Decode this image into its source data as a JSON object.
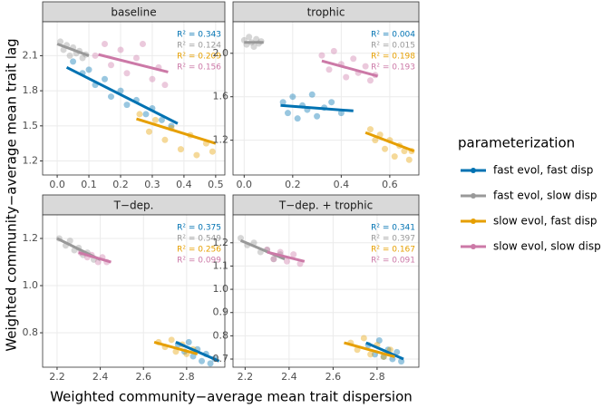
{
  "chart_data": [
    {
      "type": "scatter",
      "title": "baseline",
      "xlim": [
        -0.046,
        0.529
      ],
      "xticks": [
        {
          "value": 0,
          "label": "0.0"
        },
        0.1,
        0.2,
        0.3,
        0.4,
        0.5
      ],
      "ylim": [
        1.08,
        2.39
      ],
      "yticks": [
        1.2,
        1.5,
        1.8,
        2.1
      ],
      "grid": true,
      "series": [
        {
          "name": "fast evol, fast disp",
          "color": "#0072B2",
          "r2": "R² = 0.343",
          "x": [
            0.05,
            0.08,
            0.1,
            0.12,
            0.15,
            0.17,
            0.2,
            0.22,
            0.25,
            0.28,
            0.3,
            0.33,
            0.36
          ],
          "y": [
            2.05,
            1.95,
            1.98,
            1.85,
            1.9,
            1.75,
            1.8,
            1.68,
            1.72,
            1.6,
            1.65,
            1.55,
            1.5
          ],
          "fit_x": [
            0.03,
            0.38
          ],
          "fit_y": [
            2.0,
            1.52
          ]
        },
        {
          "name": "fast evol, slow disp",
          "color": "#999999",
          "r2": "R² = 0.124",
          "x": [
            0.01,
            0.02,
            0.03,
            0.04,
            0.05,
            0.06,
            0.07,
            0.08,
            0.09
          ],
          "y": [
            2.22,
            2.15,
            2.19,
            2.1,
            2.17,
            2.12,
            2.14,
            2.08,
            2.11
          ],
          "fit_x": [
            0.0,
            0.1
          ],
          "fit_y": [
            2.2,
            2.1
          ]
        },
        {
          "name": "slow evol, fast disp",
          "color": "#E69F00",
          "r2": "R² = 0.209",
          "x": [
            0.26,
            0.29,
            0.31,
            0.34,
            0.36,
            0.39,
            0.42,
            0.44,
            0.47,
            0.49
          ],
          "y": [
            1.6,
            1.45,
            1.55,
            1.38,
            1.48,
            1.3,
            1.42,
            1.25,
            1.35,
            1.28
          ],
          "fit_x": [
            0.25,
            0.5
          ],
          "fit_y": [
            1.56,
            1.35
          ]
        },
        {
          "name": "slow evol, slow disp",
          "color": "#CC79A7",
          "r2": "R² = 0.156",
          "x": [
            0.12,
            0.15,
            0.17,
            0.2,
            0.22,
            0.25,
            0.27,
            0.3,
            0.32,
            0.34
          ],
          "y": [
            2.1,
            2.2,
            2.02,
            2.15,
            1.95,
            2.08,
            2.2,
            1.9,
            2.0,
            1.85
          ],
          "fit_x": [
            0.13,
            0.35
          ],
          "fit_y": [
            2.11,
            1.96
          ]
        }
      ]
    },
    {
      "type": "scatter",
      "title": "trophic",
      "xlim": [
        -0.046,
        0.72
      ],
      "xticks": [
        {
          "value": 0,
          "label": "0.0"
        },
        0.2,
        0.4,
        0.6
      ],
      "ylim": [
        0.88,
        2.29
      ],
      "yticks": [
        1.2,
        1.6,
        {
          "value": 2,
          "label": "2.0"
        }
      ],
      "grid": true,
      "series": [
        {
          "name": "fast evol, fast disp",
          "color": "#0072B2",
          "r2": "R² = 0.004",
          "x": [
            0.16,
            0.18,
            0.2,
            0.22,
            0.24,
            0.26,
            0.28,
            0.3,
            0.33,
            0.36,
            0.4
          ],
          "y": [
            1.55,
            1.45,
            1.6,
            1.4,
            1.52,
            1.48,
            1.62,
            1.42,
            1.5,
            1.55,
            1.45
          ],
          "fit_x": [
            0.15,
            0.45
          ],
          "fit_y": [
            1.52,
            1.47
          ]
        },
        {
          "name": "fast evol, slow disp",
          "color": "#999999",
          "r2": "R² = 0.015",
          "x": [
            0.0,
            0.01,
            0.02,
            0.03,
            0.04,
            0.05,
            0.06,
            0.07
          ],
          "y": [
            2.12,
            2.08,
            2.15,
            2.1,
            2.06,
            2.13,
            2.09,
            2.11
          ],
          "fit_x": [
            0.0,
            0.08
          ],
          "fit_y": [
            2.1,
            2.1
          ]
        },
        {
          "name": "slow evol, fast disp",
          "color": "#E69F00",
          "r2": "R² = 0.198",
          "x": [
            0.52,
            0.54,
            0.56,
            0.58,
            0.6,
            0.62,
            0.64,
            0.66,
            0.68,
            0.69
          ],
          "y": [
            1.3,
            1.2,
            1.25,
            1.12,
            1.2,
            1.05,
            1.15,
            1.1,
            1.02,
            1.1
          ],
          "fit_x": [
            0.5,
            0.7
          ],
          "fit_y": [
            1.27,
            1.1
          ]
        },
        {
          "name": "slow evol, slow disp",
          "color": "#CC79A7",
          "r2": "R² = 0.193",
          "x": [
            0.32,
            0.35,
            0.37,
            0.4,
            0.42,
            0.45,
            0.47,
            0.5,
            0.52,
            0.54
          ],
          "y": [
            1.98,
            1.85,
            2.02,
            1.9,
            1.78,
            1.95,
            1.82,
            1.88,
            1.75,
            1.8
          ],
          "fit_x": [
            0.32,
            0.55
          ],
          "fit_y": [
            1.93,
            1.79
          ]
        }
      ]
    },
    {
      "type": "scatter",
      "title": "T−dep.",
      "xlim": [
        2.133,
        2.977
      ],
      "xticks": [
        2.2,
        2.4,
        2.6,
        2.8
      ],
      "ylim": [
        0.654,
        1.3
      ],
      "yticks": [
        0.8,
        {
          "value": 1,
          "label": "1.0"
        },
        1.2
      ],
      "grid": true,
      "series": [
        {
          "name": "fast evol, fast disp",
          "color": "#0072B2",
          "r2": "R² = 0.375",
          "x": [
            2.76,
            2.79,
            2.81,
            2.83,
            2.85,
            2.87,
            2.89,
            2.91,
            2.93
          ],
          "y": [
            0.75,
            0.72,
            0.76,
            0.7,
            0.73,
            0.68,
            0.71,
            0.67,
            0.69
          ],
          "fit_x": [
            2.75,
            2.95
          ],
          "fit_y": [
            0.76,
            0.68
          ]
        },
        {
          "name": "fast evol, slow disp",
          "color": "#999999",
          "r2": "R² = 0.549",
          "x": [
            2.21,
            2.24,
            2.26,
            2.28,
            2.3,
            2.32,
            2.34,
            2.37
          ],
          "y": [
            1.2,
            1.17,
            1.19,
            1.15,
            1.16,
            1.13,
            1.14,
            1.11
          ],
          "fit_x": [
            2.2,
            2.4
          ],
          "fit_y": [
            1.2,
            1.11
          ]
        },
        {
          "name": "slow evol, fast disp",
          "color": "#E69F00",
          "r2": "R² = 0.256",
          "x": [
            2.67,
            2.7,
            2.73,
            2.75,
            2.78,
            2.8,
            2.83
          ],
          "y": [
            0.76,
            0.74,
            0.77,
            0.72,
            0.75,
            0.71,
            0.73
          ],
          "fit_x": [
            2.65,
            2.85
          ],
          "fit_y": [
            0.76,
            0.71
          ]
        },
        {
          "name": "slow evol, slow disp",
          "color": "#CC79A7",
          "r2": "R² = 0.099",
          "x": [
            2.31,
            2.34,
            2.36,
            2.39,
            2.41,
            2.43
          ],
          "y": [
            1.14,
            1.12,
            1.13,
            1.1,
            1.12,
            1.1
          ],
          "fit_x": [
            2.3,
            2.45
          ],
          "fit_y": [
            1.14,
            1.1
          ]
        }
      ]
    },
    {
      "type": "scatter",
      "title": "T−dep. + trophic",
      "xlim": [
        2.145,
        2.99
      ],
      "xticks": [
        2.2,
        2.4,
        2.6,
        2.8
      ],
      "ylim": [
        0.665,
        1.32
      ],
      "yticks": [
        0.7,
        0.8,
        0.9,
        {
          "value": 1,
          "label": "1.0"
        },
        1.1,
        1.2
      ],
      "grid": true,
      "series": [
        {
          "name": "fast evol, fast disp",
          "color": "#0072B2",
          "r2": "R² = 0.341",
          "x": [
            2.76,
            2.79,
            2.81,
            2.83,
            2.85,
            2.87,
            2.89,
            2.91
          ],
          "y": [
            0.76,
            0.72,
            0.78,
            0.71,
            0.74,
            0.7,
            0.73,
            0.69
          ],
          "fit_x": [
            2.75,
            2.92
          ],
          "fit_y": [
            0.77,
            0.7
          ]
        },
        {
          "name": "fast evol, slow disp",
          "color": "#999999",
          "r2": "R² = 0.397",
          "x": [
            2.18,
            2.21,
            2.24,
            2.27,
            2.3,
            2.33,
            2.36
          ],
          "y": [
            1.22,
            1.19,
            1.2,
            1.16,
            1.17,
            1.13,
            1.15
          ],
          "fit_x": [
            2.18,
            2.38
          ],
          "fit_y": [
            1.21,
            1.13
          ]
        },
        {
          "name": "slow evol, fast disp",
          "color": "#E69F00",
          "r2": "R² = 0.167",
          "x": [
            2.68,
            2.71,
            2.74,
            2.77,
            2.8,
            2.83,
            2.86
          ],
          "y": [
            0.77,
            0.74,
            0.79,
            0.72,
            0.76,
            0.71,
            0.74
          ],
          "fit_x": [
            2.65,
            2.88
          ],
          "fit_y": [
            0.77,
            0.71
          ]
        },
        {
          "name": "slow evol, slow disp",
          "color": "#CC79A7",
          "r2": "R² = 0.091",
          "x": [
            2.3,
            2.33,
            2.36,
            2.39,
            2.42,
            2.45
          ],
          "y": [
            1.17,
            1.13,
            1.16,
            1.12,
            1.15,
            1.11
          ],
          "fit_x": [
            2.3,
            2.47
          ],
          "fit_y": [
            1.16,
            1.12
          ]
        }
      ]
    }
  ],
  "xlabel": "Weighted community−average mean trait dispersion",
  "ylabel": "Weighted community−average mean trait lag",
  "legend_title": "parameterization"
}
